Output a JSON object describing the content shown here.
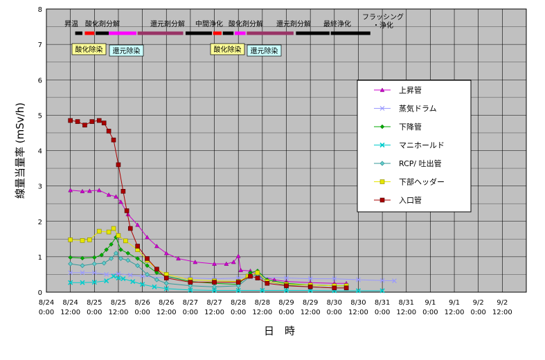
{
  "chart_data": {
    "type": "line",
    "title": "",
    "xlabel": "日　時",
    "ylabel": "線量当量率 (mSv/h)",
    "ylim": [
      0,
      8
    ],
    "yticks": [
      "0",
      "1",
      "2",
      "3",
      "4",
      "5",
      "6",
      "7",
      "8"
    ],
    "xlim": [
      0,
      20
    ],
    "xticks": [
      {
        "date": "8/24",
        "time": "0:00"
      },
      {
        "date": "8/24",
        "time": "12:00"
      },
      {
        "date": "8/25",
        "time": "0:00"
      },
      {
        "date": "8/25",
        "time": "12:00"
      },
      {
        "date": "8/26",
        "time": "0:00"
      },
      {
        "date": "8/26",
        "time": "12:00"
      },
      {
        "date": "8/27",
        "time": "0:00"
      },
      {
        "date": "8/27",
        "time": "12:00"
      },
      {
        "date": "8/28",
        "time": "0:00"
      },
      {
        "date": "8/28",
        "time": "12:00"
      },
      {
        "date": "8/29",
        "time": "0:00"
      },
      {
        "date": "8/29",
        "time": "12:00"
      },
      {
        "date": "8/30",
        "time": "0:00"
      },
      {
        "date": "8/30",
        "time": "12:00"
      },
      {
        "date": "8/31",
        "time": "0:00"
      },
      {
        "date": "8/31",
        "time": "12:00"
      },
      {
        "date": "9/1",
        "time": "0:00"
      },
      {
        "date": "9/1",
        "time": "12:00"
      },
      {
        "date": "9/2",
        "time": "0:00"
      },
      {
        "date": "9/2",
        "time": "12:00"
      }
    ],
    "grid": true,
    "legend_position": "right",
    "series": [
      {
        "name": "上昇管",
        "color": "#cc00cc",
        "marker": "triangle",
        "points": [
          [
            1,
            2.88
          ],
          [
            1.5,
            2.85
          ],
          [
            1.8,
            2.86
          ],
          [
            2.2,
            2.88
          ],
          [
            2.6,
            2.75
          ],
          [
            2.9,
            2.7
          ],
          [
            3.1,
            2.55
          ],
          [
            3.4,
            2.2
          ],
          [
            3.8,
            1.9
          ],
          [
            4.2,
            1.55
          ],
          [
            4.6,
            1.3
          ],
          [
            5.0,
            1.1
          ],
          [
            5.5,
            0.95
          ],
          [
            6.2,
            0.85
          ],
          [
            7.0,
            0.8
          ],
          [
            7.5,
            0.8
          ],
          [
            7.8,
            0.85
          ],
          [
            8.0,
            1.02
          ],
          [
            8.1,
            0.62
          ],
          [
            8.5,
            0.6
          ],
          [
            8.9,
            0.45
          ],
          [
            9.5,
            0.35
          ],
          [
            10,
            0.3
          ],
          [
            11,
            0.27
          ],
          [
            12,
            0.25
          ],
          [
            12.5,
            0.25
          ]
        ]
      },
      {
        "name": "蒸気ドラム",
        "color": "#9999ff",
        "marker": "x",
        "points": [
          [
            1,
            0.55
          ],
          [
            1.5,
            0.55
          ],
          [
            2.0,
            0.55
          ],
          [
            2.5,
            0.5
          ],
          [
            3.0,
            0.52
          ],
          [
            3.5,
            0.48
          ],
          [
            4.0,
            0.45
          ],
          [
            5.0,
            0.4
          ],
          [
            6.0,
            0.4
          ],
          [
            7.0,
            0.38
          ],
          [
            8.0,
            0.4
          ],
          [
            8.5,
            0.42
          ],
          [
            9.0,
            0.42
          ],
          [
            10,
            0.4
          ],
          [
            11,
            0.38
          ],
          [
            12,
            0.38
          ],
          [
            13,
            0.35
          ],
          [
            14,
            0.33
          ],
          [
            14.5,
            0.32
          ]
        ]
      },
      {
        "name": "下降管",
        "color": "#00aa00",
        "marker": "diamond",
        "points": [
          [
            1,
            0.98
          ],
          [
            1.5,
            0.96
          ],
          [
            2.0,
            0.98
          ],
          [
            2.3,
            1.05
          ],
          [
            2.5,
            1.2
          ],
          [
            2.7,
            1.35
          ],
          [
            2.9,
            1.55
          ],
          [
            3.1,
            1.2
          ],
          [
            3.4,
            1.1
          ],
          [
            3.8,
            0.95
          ],
          [
            4.2,
            0.75
          ],
          [
            4.6,
            0.55
          ],
          [
            5.0,
            0.45
          ],
          [
            6.0,
            0.3
          ],
          [
            7.0,
            0.25
          ],
          [
            8.0,
            0.22
          ],
          [
            8.5,
            0.55
          ],
          [
            8.8,
            0.6
          ],
          [
            9.2,
            0.35
          ],
          [
            10,
            0.25
          ],
          [
            11,
            0.2
          ],
          [
            12,
            0.18
          ],
          [
            12.5,
            0.18
          ]
        ]
      },
      {
        "name": "マニホールド",
        "color": "#00cccc",
        "marker": "cross",
        "points": [
          [
            1,
            0.27
          ],
          [
            1.5,
            0.27
          ],
          [
            2.0,
            0.28
          ],
          [
            2.5,
            0.32
          ],
          [
            2.8,
            0.45
          ],
          [
            3.0,
            0.4
          ],
          [
            3.2,
            0.38
          ],
          [
            3.6,
            0.3
          ],
          [
            4.0,
            0.22
          ],
          [
            4.5,
            0.15
          ],
          [
            5.0,
            0.1
          ],
          [
            6.0,
            0.06
          ],
          [
            7.0,
            0.05
          ],
          [
            8.0,
            0.05
          ],
          [
            9.0,
            0.05
          ],
          [
            10,
            0.05
          ],
          [
            11,
            0.05
          ],
          [
            12,
            0.04
          ],
          [
            13,
            0.04
          ],
          [
            14,
            0.04
          ]
        ]
      },
      {
        "name": "RCP/ 吐出管",
        "color": "#339999",
        "marker": "diamond-outline",
        "points": [
          [
            1,
            0.8
          ],
          [
            1.5,
            0.75
          ],
          [
            2.0,
            0.8
          ],
          [
            2.4,
            0.82
          ],
          [
            2.7,
            0.95
          ],
          [
            2.9,
            1.1
          ],
          [
            3.1,
            0.95
          ],
          [
            3.4,
            0.9
          ],
          [
            3.8,
            0.75
          ],
          [
            4.2,
            0.5
          ],
          [
            4.6,
            0.35
          ],
          [
            5.0,
            0.25
          ],
          [
            6.0,
            0.18
          ],
          [
            7.0,
            0.15
          ],
          [
            8.0,
            0.18
          ],
          [
            8.5,
            0.45
          ],
          [
            8.8,
            0.5
          ],
          [
            9.2,
            0.3
          ],
          [
            10,
            0.2
          ],
          [
            11,
            0.15
          ],
          [
            12,
            0.12
          ],
          [
            12.5,
            0.12
          ]
        ]
      },
      {
        "name": "下部ヘッダー",
        "color": "#e6e600",
        "marker": "square-outline",
        "points": [
          [
            1,
            1.48
          ],
          [
            1.5,
            1.46
          ],
          [
            1.8,
            1.48
          ],
          [
            2.2,
            1.72
          ],
          [
            2.6,
            1.7
          ],
          [
            2.8,
            1.8
          ],
          [
            3.0,
            1.6
          ],
          [
            3.3,
            1.45
          ],
          [
            3.8,
            1.2
          ],
          [
            4.2,
            0.9
          ],
          [
            4.6,
            0.65
          ],
          [
            5.0,
            0.5
          ],
          [
            6.0,
            0.35
          ],
          [
            7.0,
            0.32
          ],
          [
            8.0,
            0.3
          ],
          [
            8.4,
            0.45
          ],
          [
            8.8,
            0.55
          ],
          [
            9.2,
            0.3
          ],
          [
            10,
            0.22
          ],
          [
            11,
            0.2
          ],
          [
            12,
            0.18
          ],
          [
            12.5,
            0.18
          ]
        ]
      },
      {
        "name": "入口管",
        "color": "#aa0000",
        "marker": "square",
        "points": [
          [
            1,
            4.85
          ],
          [
            1.3,
            4.82
          ],
          [
            1.6,
            4.72
          ],
          [
            1.9,
            4.82
          ],
          [
            2.2,
            4.85
          ],
          [
            2.4,
            4.78
          ],
          [
            2.6,
            4.55
          ],
          [
            2.8,
            4.3
          ],
          [
            3.0,
            3.6
          ],
          [
            3.2,
            2.85
          ],
          [
            3.35,
            2.3
          ],
          [
            3.5,
            1.8
          ],
          [
            3.8,
            1.3
          ],
          [
            4.2,
            0.95
          ],
          [
            4.6,
            0.65
          ],
          [
            5.0,
            0.4
          ],
          [
            6.0,
            0.28
          ],
          [
            7.0,
            0.28
          ],
          [
            8.0,
            0.28
          ],
          [
            8.5,
            0.45
          ],
          [
            8.8,
            0.4
          ],
          [
            9.2,
            0.25
          ],
          [
            10,
            0.18
          ],
          [
            11,
            0.15
          ],
          [
            12,
            0.12
          ],
          [
            12.5,
            0.12
          ]
        ]
      }
    ],
    "annotations": {
      "phases": [
        {
          "label": "昇温",
          "color": "#000000",
          "x": [
            1.2,
            1.5
          ]
        },
        {
          "label": "酸化剤分解",
          "color": "#ff0000",
          "x": [
            1.6,
            2.0
          ]
        },
        {
          "label": "",
          "color": "#000000",
          "x": [
            2.05,
            2.6
          ]
        },
        {
          "label": "",
          "color": "#ff00ff",
          "x": [
            2.6,
            3.75
          ]
        },
        {
          "label": "還元剤分解",
          "color": "#993366",
          "x": [
            3.8,
            5.7
          ]
        },
        {
          "label": "中間浄化",
          "color": "#000000",
          "x": [
            5.8,
            6.9
          ]
        },
        {
          "label": "酸化剤分解",
          "color": "#ff0000",
          "x": [
            6.95,
            7.3
          ]
        },
        {
          "label": "",
          "color": "#000000",
          "x": [
            7.35,
            7.8
          ]
        },
        {
          "label": "",
          "color": "#ff00ff",
          "x": [
            7.85,
            8.3
          ]
        },
        {
          "label": "還元剤分解",
          "color": "#993366",
          "x": [
            8.35,
            10.3
          ]
        },
        {
          "label": "最終浄化",
          "color": "#000000",
          "x": [
            10.4,
            11.8
          ]
        },
        {
          "label": "フラッシング・浄化",
          "color": "#000000",
          "x": [
            11.85,
            13.5
          ]
        }
      ],
      "boxes": [
        {
          "label": "酸化除染",
          "fill": "#ffff99"
        },
        {
          "label": "還元除染",
          "fill": "#ccffff"
        },
        {
          "label": "酸化除染",
          "fill": "#ffff99"
        },
        {
          "label": "還元除染",
          "fill": "#ccffff"
        }
      ]
    }
  }
}
